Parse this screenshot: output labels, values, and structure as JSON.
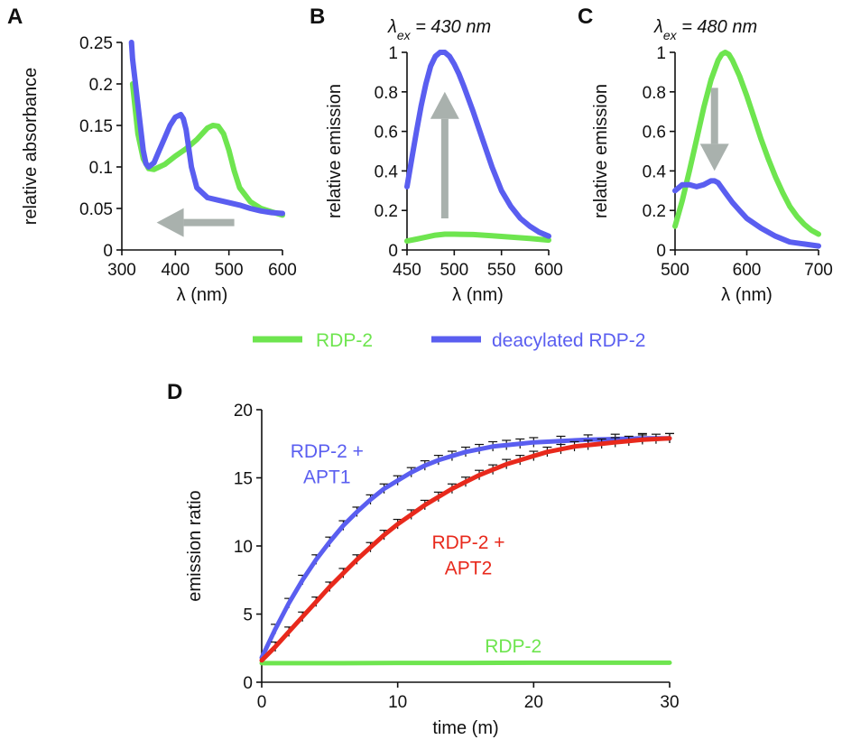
{
  "legend": {
    "items": [
      {
        "label": "RDP-2",
        "color": "#6ee54f"
      },
      {
        "label": "deacylated RDP-2",
        "color": "#5a5ef0"
      }
    ]
  },
  "colors": {
    "green": "#6ee54f",
    "blue": "#5a5ef0",
    "red": "#e8291c",
    "arrow": "#a9b1ad"
  },
  "chart_data": [
    {
      "id": "A",
      "panel_label": "A",
      "type": "line",
      "xlabel": "λ (nm)",
      "ylabel": "relative absorbance",
      "xlim": [
        300,
        600
      ],
      "ylim": [
        0,
        0.25
      ],
      "xticks": [
        300,
        400,
        500,
        600
      ],
      "yticks": [
        0,
        0.05,
        0.1,
        0.15,
        0.2,
        0.25
      ],
      "ytick_labels": [
        "0",
        "0.05",
        "0.1",
        "0.15",
        "0.2",
        "0.25"
      ],
      "series": [
        {
          "color": "#6ee54f",
          "x": [
            320,
            330,
            340,
            350,
            360,
            380,
            400,
            420,
            440,
            460,
            470,
            480,
            490,
            500,
            510,
            520,
            540,
            560,
            580,
            600
          ],
          "y": [
            0.2,
            0.14,
            0.11,
            0.098,
            0.097,
            0.103,
            0.113,
            0.122,
            0.133,
            0.147,
            0.15,
            0.149,
            0.14,
            0.12,
            0.095,
            0.075,
            0.058,
            0.05,
            0.046,
            0.042
          ]
        },
        {
          "color": "#5a5ef0",
          "x": [
            318,
            320,
            330,
            340,
            345,
            350,
            360,
            370,
            380,
            390,
            400,
            410,
            415,
            420,
            430,
            440,
            460,
            480,
            500,
            520,
            540,
            560,
            580,
            600
          ],
          "y": [
            0.25,
            0.23,
            0.175,
            0.12,
            0.104,
            0.1,
            0.105,
            0.12,
            0.135,
            0.15,
            0.16,
            0.163,
            0.158,
            0.145,
            0.1,
            0.075,
            0.063,
            0.06,
            0.057,
            0.054,
            0.05,
            0.047,
            0.045,
            0.044
          ]
        }
      ],
      "arrow": {
        "from": [
          510,
          0.033
        ],
        "to": [
          365,
          0.033
        ],
        "color": "#a9b1ad"
      }
    },
    {
      "id": "B",
      "panel_label": "B",
      "subtitle": {
        "lambda": "λ",
        "sub": "ex",
        "rest": " = 430 nm"
      },
      "type": "line",
      "xlabel": "λ (nm)",
      "ylabel": "relative emission",
      "xlim": [
        450,
        600
      ],
      "ylim": [
        0,
        1
      ],
      "xticks": [
        450,
        500,
        550,
        600
      ],
      "yticks": [
        0,
        0.2,
        0.4,
        0.6,
        0.8,
        1
      ],
      "ytick_labels": [
        "0",
        "0.2",
        "0.4",
        "0.6",
        "0.8",
        "1"
      ],
      "series": [
        {
          "color": "#6ee54f",
          "x": [
            450,
            460,
            470,
            480,
            490,
            500,
            520,
            540,
            560,
            580,
            600
          ],
          "y": [
            0.045,
            0.055,
            0.065,
            0.075,
            0.08,
            0.08,
            0.078,
            0.072,
            0.065,
            0.058,
            0.05
          ]
        },
        {
          "color": "#5a5ef0",
          "x": [
            450,
            455,
            460,
            465,
            470,
            475,
            480,
            485,
            490,
            495,
            500,
            505,
            510,
            520,
            530,
            540,
            550,
            560,
            570,
            580,
            590,
            600
          ],
          "y": [
            0.32,
            0.46,
            0.6,
            0.73,
            0.84,
            0.93,
            0.98,
            1.0,
            1.0,
            0.98,
            0.94,
            0.89,
            0.83,
            0.7,
            0.56,
            0.42,
            0.3,
            0.22,
            0.16,
            0.12,
            0.09,
            0.07
          ]
        }
      ],
      "arrow": {
        "from": [
          490,
          0.16
        ],
        "to": [
          490,
          0.8
        ],
        "color": "#a9b1ad"
      }
    },
    {
      "id": "C",
      "panel_label": "C",
      "subtitle": {
        "lambda": "λ",
        "sub": "ex",
        "rest": " = 480 nm"
      },
      "type": "line",
      "xlabel": "λ (nm)",
      "ylabel": "relative emission",
      "xlim": [
        500,
        700
      ],
      "ylim": [
        0,
        1
      ],
      "xticks": [
        500,
        600,
        700
      ],
      "yticks": [
        0,
        0.2,
        0.4,
        0.6,
        0.8,
        1
      ],
      "ytick_labels": [
        "0",
        "0.2",
        "0.4",
        "0.6",
        "0.8",
        "1"
      ],
      "series": [
        {
          "color": "#6ee54f",
          "x": [
            500,
            510,
            520,
            530,
            540,
            550,
            560,
            565,
            570,
            575,
            580,
            590,
            600,
            610,
            620,
            630,
            640,
            650,
            660,
            670,
            680,
            690,
            700
          ],
          "y": [
            0.12,
            0.25,
            0.4,
            0.56,
            0.72,
            0.86,
            0.96,
            0.99,
            1.0,
            0.99,
            0.96,
            0.88,
            0.78,
            0.67,
            0.56,
            0.46,
            0.37,
            0.29,
            0.22,
            0.17,
            0.13,
            0.1,
            0.08
          ]
        },
        {
          "color": "#5a5ef0",
          "x": [
            500,
            510,
            520,
            530,
            540,
            550,
            555,
            560,
            570,
            580,
            590,
            600,
            620,
            640,
            660,
            680,
            700
          ],
          "y": [
            0.3,
            0.33,
            0.33,
            0.32,
            0.33,
            0.35,
            0.35,
            0.34,
            0.29,
            0.24,
            0.2,
            0.16,
            0.11,
            0.07,
            0.04,
            0.03,
            0.02
          ]
        }
      ],
      "arrow": {
        "from": [
          555,
          0.82
        ],
        "to": [
          555,
          0.4
        ],
        "color": "#a9b1ad"
      }
    },
    {
      "id": "D",
      "panel_label": "D",
      "type": "line",
      "xlabel": "time (m)",
      "ylabel": "emission ratio",
      "xlim": [
        0,
        30
      ],
      "ylim": [
        0,
        20
      ],
      "xticks": [
        0,
        10,
        20,
        30
      ],
      "yticks": [
        0,
        5,
        10,
        15,
        20
      ],
      "ytick_labels": [
        "0",
        "5",
        "10",
        "15",
        "20"
      ],
      "series": [
        {
          "name": "RDP-2",
          "color": "#6ee54f",
          "x": [
            0,
            5,
            10,
            15,
            20,
            25,
            30
          ],
          "y": [
            1.4,
            1.4,
            1.42,
            1.42,
            1.43,
            1.43,
            1.43
          ]
        },
        {
          "name": "RDP-2 + APT1",
          "label_lines": [
            "RDP-2 +",
            "APT1"
          ],
          "color": "#5a5ef0",
          "x": [
            0,
            1,
            2,
            3,
            4,
            5,
            6,
            7,
            8,
            9,
            10,
            11,
            12,
            13,
            14,
            15,
            16,
            17,
            18,
            19,
            20,
            22,
            24,
            26,
            28,
            30
          ],
          "y": [
            1.8,
            3.9,
            5.8,
            7.5,
            9.0,
            10.3,
            11.5,
            12.5,
            13.4,
            14.2,
            14.8,
            15.4,
            15.9,
            16.3,
            16.6,
            16.9,
            17.1,
            17.3,
            17.4,
            17.5,
            17.6,
            17.7,
            17.8,
            17.85,
            17.9,
            17.9
          ]
        },
        {
          "name": "RDP-2 + APT2",
          "label_lines": [
            "RDP-2 +",
            "APT2"
          ],
          "color": "#e8291c",
          "x": [
            0,
            1,
            2,
            3,
            4,
            5,
            6,
            7,
            8,
            9,
            10,
            11,
            12,
            13,
            14,
            15,
            16,
            17,
            18,
            19,
            20,
            21,
            22,
            23,
            24,
            25,
            26,
            27,
            28,
            29,
            30
          ],
          "y": [
            1.6,
            2.6,
            3.7,
            4.8,
            5.9,
            7.0,
            8.0,
            9.0,
            9.9,
            10.8,
            11.6,
            12.3,
            13.0,
            13.6,
            14.2,
            14.7,
            15.2,
            15.6,
            16.0,
            16.3,
            16.6,
            16.9,
            17.1,
            17.3,
            17.4,
            17.5,
            17.6,
            17.7,
            17.8,
            17.85,
            17.9
          ]
        }
      ],
      "error_bars": {
        "apply_to": [
          "RDP-2 + APT1",
          "RDP-2 + APT2"
        ],
        "size": 0.35
      }
    }
  ]
}
